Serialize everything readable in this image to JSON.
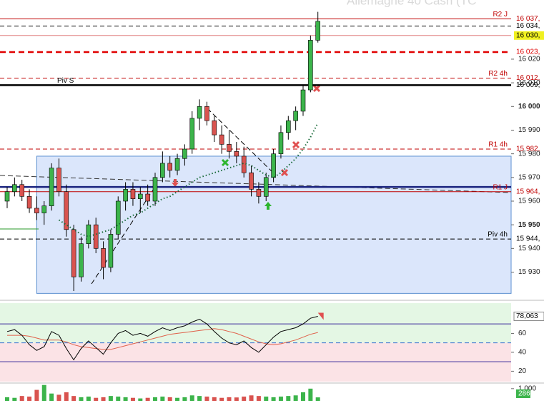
{
  "chart_data": [
    {
      "type": "candlestick",
      "title": "Allemagne 40 Cash (TC",
      "open": [
        15960,
        15964,
        15967,
        15962,
        15957,
        15955,
        15958,
        15974,
        15964,
        15948,
        15928,
        15942,
        15950,
        15940,
        15932,
        15946,
        15960,
        15965,
        15961,
        15963,
        15960,
        15970,
        15976,
        15973,
        15978,
        15982,
        15995,
        16000,
        15994,
        15988,
        15984,
        15981,
        15979,
        15972,
        15965,
        15962,
        15970,
        15980,
        15989,
        15994,
        15998,
        16007,
        16028
      ],
      "high": [
        15966,
        15970,
        15969,
        15965,
        15962,
        15960,
        15976,
        15978,
        15967,
        15950,
        15945,
        15952,
        15953,
        15943,
        15948,
        15962,
        15968,
        15968,
        15966,
        15967,
        15972,
        15981,
        15979,
        15980,
        15984,
        15998,
        16003,
        16002,
        15996,
        15992,
        15990,
        15985,
        15983,
        15975,
        15968,
        15972,
        15982,
        15992,
        15996,
        16000,
        16009,
        16030,
        16040
      ],
      "low": [
        15957,
        15962,
        15960,
        15955,
        15952,
        15950,
        15956,
        15962,
        15945,
        15922,
        15926,
        15940,
        15938,
        15927,
        15930,
        15944,
        15956,
        15958,
        15955,
        15958,
        15958,
        15968,
        15970,
        15971,
        15975,
        15980,
        15990,
        15992,
        15985,
        15980,
        15978,
        15976,
        15970,
        15962,
        15959,
        15960,
        15968,
        15978,
        15986,
        15990,
        15996,
        16006,
        16027
      ],
      "close": [
        15964,
        15967,
        15962,
        15957,
        15955,
        15958,
        15974,
        15964,
        15948,
        15928,
        15942,
        15950,
        15940,
        15932,
        15946,
        15960,
        15965,
        15961,
        15963,
        15960,
        15970,
        15976,
        15973,
        15978,
        15982,
        15995,
        16000,
        15994,
        15988,
        15984,
        15981,
        15979,
        15972,
        15965,
        15962,
        15970,
        15980,
        15989,
        15994,
        15998,
        16007,
        16028,
        16036
      ],
      "ma": {
        "color": "#1a6b3a",
        "values": [
          null,
          null,
          null,
          null,
          null,
          null,
          null,
          15952,
          15950,
          15948,
          15946,
          15945,
          15946,
          15947,
          15948,
          15950,
          15952,
          15954,
          15955,
          15957,
          15959,
          15961,
          15962,
          15964,
          15966,
          15968,
          15970,
          15971,
          15972,
          15973,
          15974,
          15975,
          15976,
          15975,
          15973,
          15971,
          15970,
          15972,
          15975,
          15978,
          15982,
          15987,
          15993
        ]
      },
      "up_color": "#3cb44b",
      "down_color": "#d9534f",
      "ylim": [
        15919,
        16045
      ],
      "yticks": [
        {
          "value": 15930,
          "label": "15 930"
        },
        {
          "value": 15940,
          "label": "15 940"
        },
        {
          "value": 15950,
          "label": "15 950",
          "bold": true
        },
        {
          "value": 15960,
          "label": "15 960"
        },
        {
          "value": 15970,
          "label": "15 970"
        },
        {
          "value": 15980,
          "label": "15 980"
        },
        {
          "value": 15990,
          "label": "15 990"
        },
        {
          "value": 16000,
          "label": "16 000",
          "bold": true
        },
        {
          "value": 16010,
          "label": "16 010"
        },
        {
          "value": 16020,
          "label": "16 020"
        }
      ],
      "zone": {
        "from": 15921,
        "to": 15979,
        "start_index": 4,
        "color": "#dbe6fb",
        "border": "#5b8fd0"
      },
      "levels": [
        {
          "name": "R2 J",
          "value": 16037,
          "label": "16 037,",
          "color": "#c00000",
          "style": "solid"
        },
        {
          "value": 16034,
          "label": "16 034,",
          "color": "#000000",
          "style": "dashed"
        },
        {
          "value": 16030,
          "label": "16 030,",
          "color": "#e08080",
          "style": "solid",
          "box": "#f0f020"
        },
        {
          "value": 16023,
          "label": "16 023,",
          "color": "#e00000",
          "style": "thick-dashed"
        },
        {
          "name": "R2 4h",
          "value": 16012,
          "label": "16 012,",
          "color": "#c00000",
          "style": "dashed"
        },
        {
          "name": "Piv S",
          "value": 16009,
          "label": "16 009,",
          "color": "#000000",
          "style": "thick",
          "align": "left"
        },
        {
          "name": "R1 4h",
          "value": 15982,
          "label": "15 982,",
          "color": "#c00000",
          "style": "dashed"
        },
        {
          "value": 15966,
          "color": "#1a237e",
          "style": "thick"
        },
        {
          "name": "R1 J",
          "value": 15964,
          "label": "15 964,",
          "color": "#c00000",
          "style": "solid"
        },
        {
          "name": "Piv 4h",
          "value": 15944,
          "label": "15 944,",
          "color": "#000000",
          "style": "dashed"
        }
      ]
    },
    {
      "type": "line",
      "values": [
        62,
        64,
        58,
        48,
        42,
        46,
        62,
        58,
        44,
        32,
        44,
        52,
        45,
        38,
        50,
        60,
        63,
        58,
        60,
        57,
        62,
        66,
        63,
        66,
        68,
        72,
        75,
        70,
        62,
        55,
        50,
        48,
        52,
        45,
        40,
        48,
        56,
        62,
        64,
        66,
        70,
        76,
        78.063
      ],
      "value_labels": [
        null,
        null,
        null,
        null,
        null,
        null,
        null,
        null,
        null,
        null,
        null,
        null,
        null,
        null,
        null,
        null,
        null,
        null,
        null,
        null,
        null,
        null,
        null,
        null,
        null,
        null,
        null,
        null,
        null,
        null,
        null,
        null,
        null,
        null,
        null,
        null,
        null,
        null,
        null,
        null,
        null,
        null,
        "78,063"
      ],
      "color": "#000000",
      "ma": {
        "color": "#e0604a",
        "values": [
          58,
          58,
          58,
          57,
          55,
          53,
          53,
          53,
          51,
          48,
          46,
          45,
          44,
          43,
          43,
          45,
          47,
          49,
          51,
          53,
          55,
          57,
          59,
          60,
          61,
          62,
          63,
          64,
          65,
          64,
          62,
          60,
          57,
          54,
          51,
          49,
          48,
          49,
          51,
          53,
          56,
          59,
          61
        ]
      },
      "ylim": [
        9,
        92
      ],
      "yticks": [
        20,
        40,
        60
      ],
      "levels": [
        {
          "value": 70,
          "color": "#3a2a9a",
          "style": "solid"
        },
        {
          "value": 50,
          "color": "#3a6fd0",
          "style": "dashed"
        },
        {
          "value": 30,
          "color": "#3a2a9a",
          "style": "solid"
        }
      ],
      "upper_color": "#e4f7e4",
      "lower_color": "#fbe3e6"
    },
    {
      "type": "bar",
      "values": [
        300,
        250,
        400,
        350,
        900,
        1300,
        600,
        500,
        700,
        400,
        300,
        350,
        250,
        300,
        400,
        350,
        300,
        250,
        200,
        250,
        300,
        350,
        300,
        250,
        300,
        450,
        400,
        350,
        300,
        250,
        300,
        280,
        350,
        450,
        400,
        350,
        300,
        350,
        400,
        450,
        700,
        1000,
        286
      ],
      "ylim": [
        0,
        1400
      ],
      "yticks": [
        {
          "value": 1000,
          "label": "1 000"
        }
      ],
      "up_color": "#3cb44b",
      "down_color": "#d9534f"
    }
  ]
}
